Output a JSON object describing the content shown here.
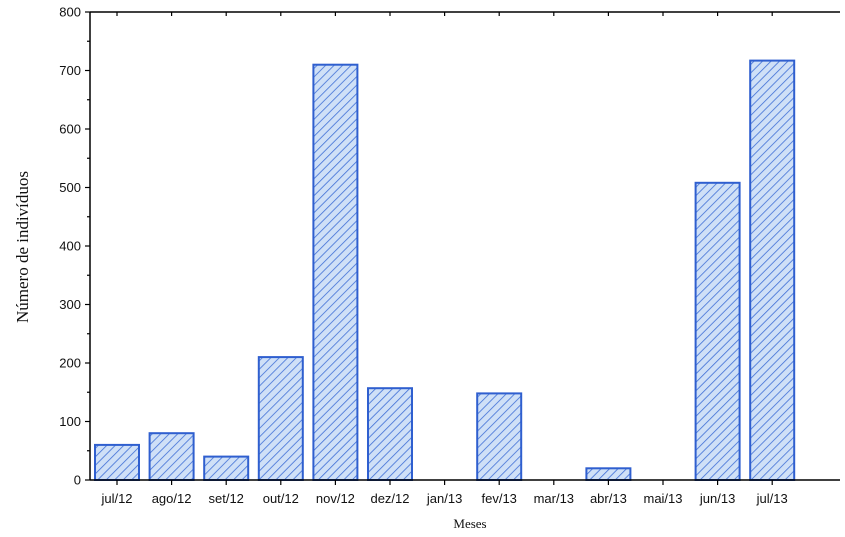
{
  "chart_data": {
    "type": "bar",
    "categories": [
      "jul/12",
      "ago/12",
      "set/12",
      "out/12",
      "nov/12",
      "dez/12",
      "jan/13",
      "fev/13",
      "mar/13",
      "abr/13",
      "mai/13",
      "jun/13",
      "jul/13"
    ],
    "values": [
      60,
      80,
      40,
      210,
      710,
      157,
      0,
      148,
      0,
      20,
      0,
      508,
      717
    ],
    "title": "",
    "xlabel": "Meses",
    "ylabel": "Número de indivíduos",
    "ylim": [
      0,
      800
    ],
    "yticks": [
      0,
      100,
      200,
      300,
      400,
      500,
      600,
      700,
      800
    ],
    "grid": false,
    "bar_fill": "#cfe0f7",
    "bar_stroke": "#2f5fcf",
    "hatch_color": "#3f6fd6"
  }
}
